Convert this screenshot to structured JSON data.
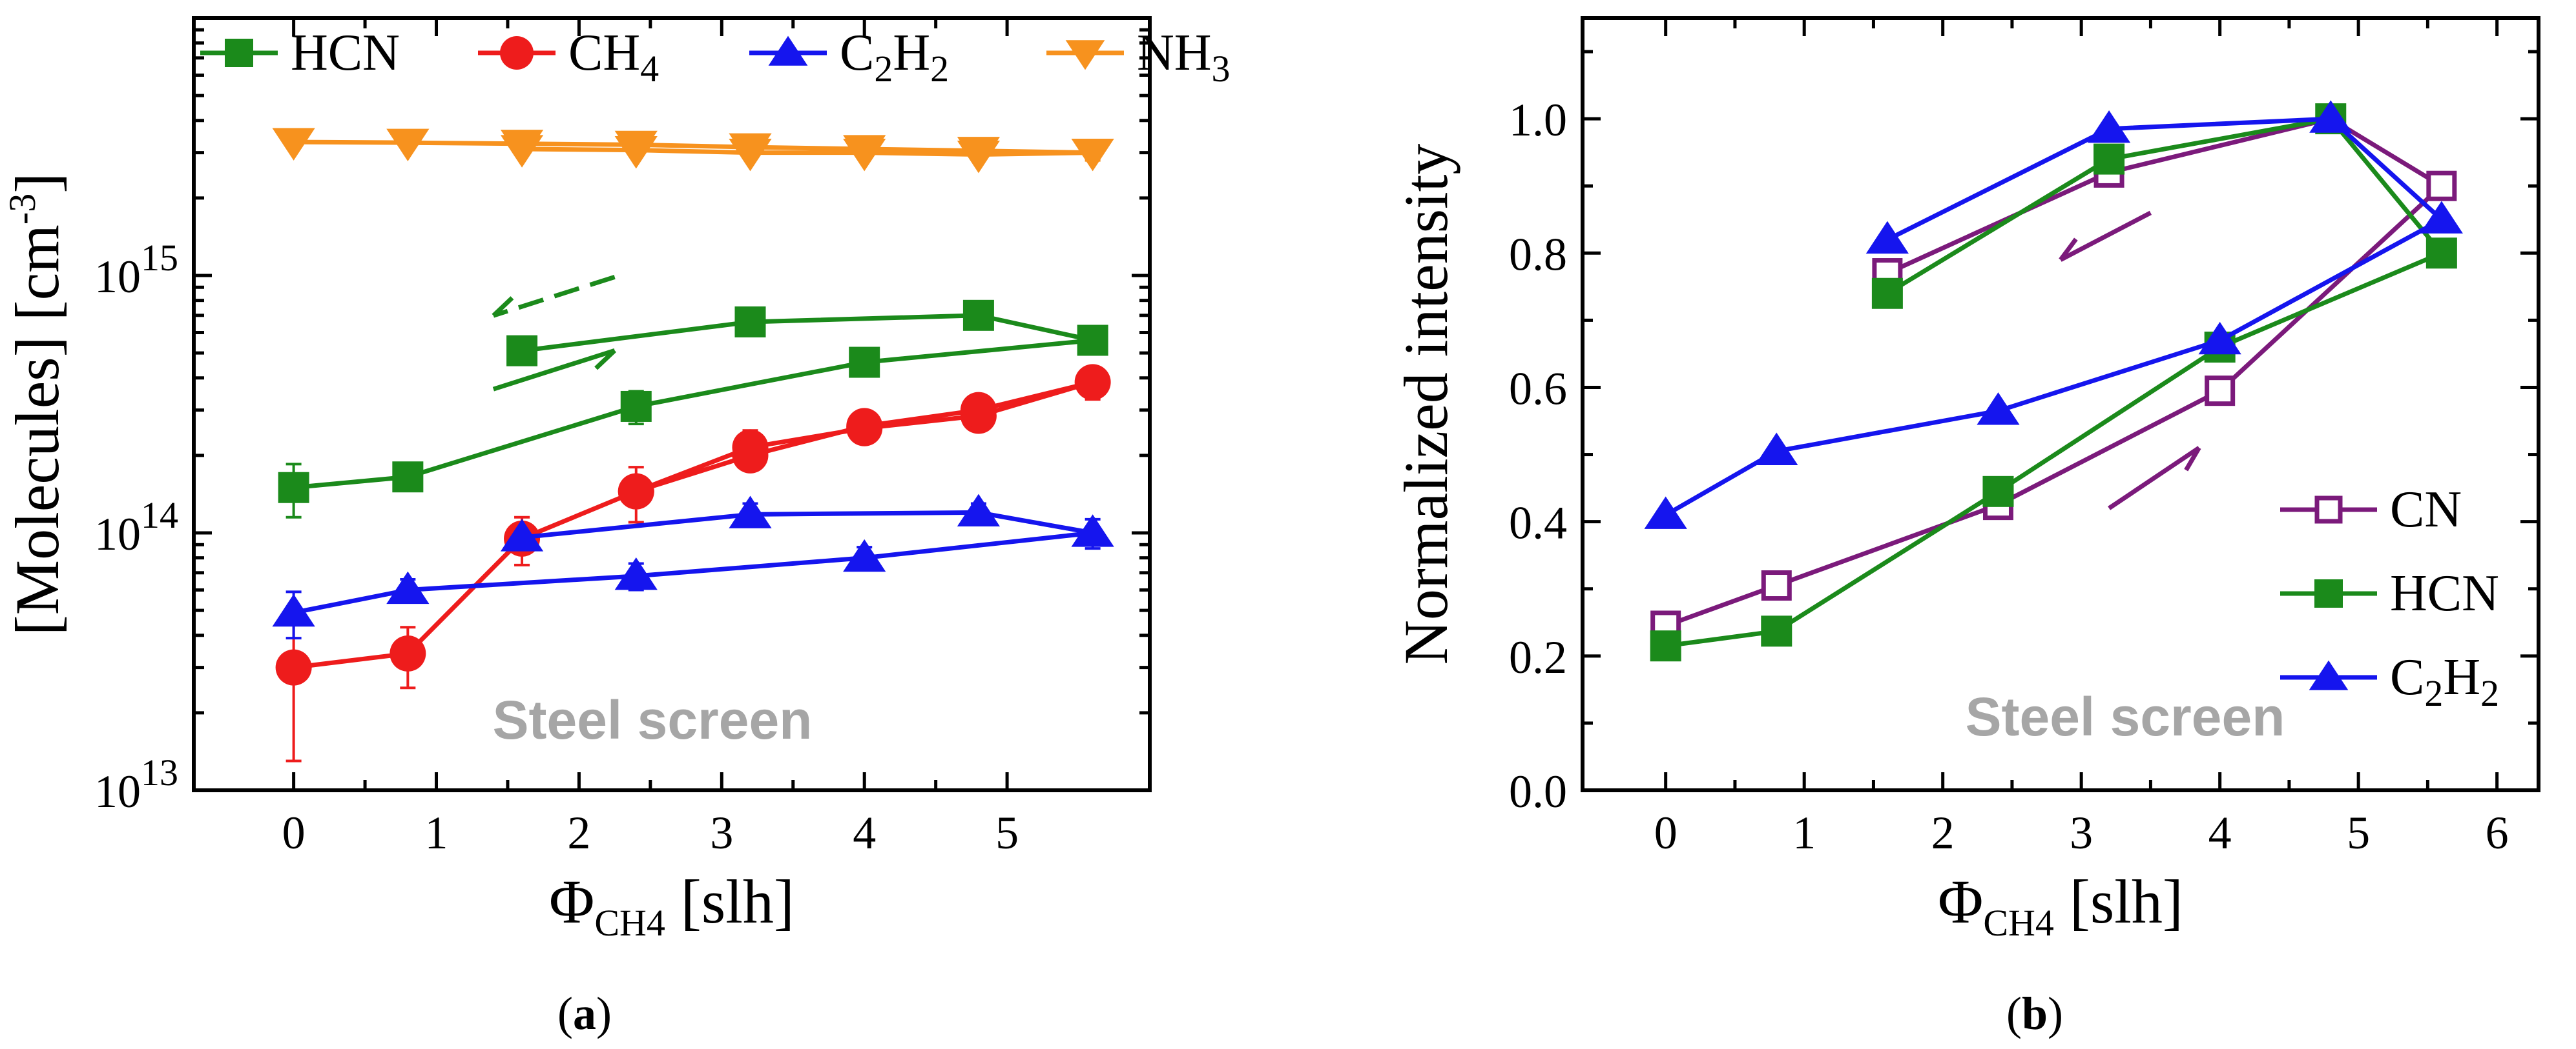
{
  "chart_data": [
    {
      "panel_label": "a",
      "type": "line",
      "scale_y": "log",
      "xlabel": {
        "main": "Φ",
        "sub": "CH4",
        "rest": " [slh]"
      },
      "ylabel": {
        "main": "[Molecules] [cm",
        "sup": "-3",
        "rest": "]"
      },
      "xlim": [
        -0.7,
        6.0
      ],
      "ylim": [
        10000000000000.0,
        1e+16
      ],
      "xticks": [
        0,
        1,
        2,
        3,
        4,
        5
      ],
      "xtick_labels": [
        "0",
        "1",
        "2",
        "3",
        "4",
        "5"
      ],
      "yticks": [
        10000000000000.0,
        100000000000000.0,
        1000000000000000.0
      ],
      "ytick_labels": [
        {
          "base": "10",
          "exp": "13"
        },
        {
          "base": "10",
          "exp": "14"
        },
        {
          "base": "10",
          "exp": "15"
        }
      ],
      "annotation": "Steel screen",
      "legend_position": "top",
      "series": [
        {
          "name": {
            "main": "HCN"
          },
          "color": "#1b8a1b",
          "marker": "square",
          "x": [
            0,
            0.8,
            2.4,
            4.0,
            5.6,
            4.8,
            3.2,
            1.6
          ],
          "y": [
            150000000000000.0,
            165000000000000.0,
            310000000000000.0,
            460000000000000.0,
            560000000000000.0,
            700000000000000.0,
            660000000000000.0,
            510000000000000.0
          ],
          "err": [
            35000000000000.0,
            15000000000000.0,
            45000000000000.0,
            20000000000000.0,
            50000000000000.0,
            60000000000000.0,
            50000000000000.0,
            45000000000000.0
          ]
        },
        {
          "name": {
            "main": "CH",
            "sub": "4"
          },
          "color": "#ee1c1c",
          "marker": "circle",
          "x": [
            0,
            0.8,
            1.6,
            2.4,
            3.2,
            4.0,
            4.8,
            5.6,
            4.8,
            4.0,
            3.2,
            2.4
          ],
          "y": [
            30000000000000.0,
            34000000000000.0,
            95000000000000.0,
            145000000000000.0,
            215000000000000.0,
            255000000000000.0,
            285000000000000.0,
            385000000000000.0,
            300000000000000.0,
            260000000000000.0,
            200000000000000.0,
            145000000000000.0
          ],
          "err": [
            17000000000000.0,
            9000000000000.0,
            20000000000000.0,
            35000000000000.0,
            35000000000000.0,
            20000000000000.0,
            20000000000000.0,
            55000000000000.0,
            0,
            0,
            0,
            0
          ]
        },
        {
          "name": {
            "main": "C",
            "sub": "2",
            "mid": "H",
            "sub2": "2"
          },
          "color": "#1515ee",
          "marker": "triangle-up",
          "x": [
            0,
            0.8,
            2.4,
            4.0,
            5.6,
            4.8,
            3.2,
            1.6
          ],
          "y": [
            49000000000000.0,
            60000000000000.0,
            68000000000000.0,
            80000000000000.0,
            100000000000000.0,
            120000000000000.0,
            118000000000000.0,
            96000000000000.0
          ],
          "err": [
            10000000000000.0,
            6000000000000.0,
            8000000000000.0,
            8000000000000.0,
            13000000000000.0,
            10000000000000.0,
            12000000000000.0,
            0
          ]
        },
        {
          "name": {
            "main": "NH",
            "sub": "3"
          },
          "color": "#f7921e",
          "marker": "triangle-down",
          "x": [
            0,
            0.8,
            1.6,
            2.4,
            3.2,
            4.0,
            4.8,
            5.6,
            4.8,
            4.0,
            3.2,
            2.4,
            1.6
          ],
          "y": [
            3300000000000000.0,
            3280000000000000.0,
            3250000000000000.0,
            3220000000000000.0,
            3150000000000000.0,
            3100000000000000.0,
            3050000000000000.0,
            3000000000000000.0,
            2950000000000000.0,
            3000000000000000.0,
            3000000000000000.0,
            3070000000000000.0,
            3100000000000000.0
          ],
          "err": [
            0,
            0,
            0,
            0,
            0,
            0,
            0,
            200000000000000.0,
            0,
            0,
            0,
            0,
            0
          ]
        }
      ]
    },
    {
      "panel_label": "b",
      "type": "line",
      "xlabel": {
        "main": "Φ",
        "sub": "CH4",
        "rest": " [slh]"
      },
      "ylabel": {
        "main": "Normalized intensity"
      },
      "xlim": [
        -0.6,
        6.3
      ],
      "ylim": [
        0.0,
        1.15
      ],
      "xticks": [
        0,
        1,
        2,
        3,
        4,
        5,
        6
      ],
      "xtick_labels": [
        "0",
        "1",
        "2",
        "3",
        "4",
        "5",
        "6"
      ],
      "yticks": [
        0.0,
        0.2,
        0.4,
        0.6,
        0.8,
        1.0
      ],
      "ytick_labels": [
        "0.0",
        "0.2",
        "0.4",
        "0.6",
        "0.8",
        "1.0"
      ],
      "annotation": "Steel screen",
      "legend_position": "bottom-right",
      "series": [
        {
          "name": {
            "main": "CN"
          },
          "color": "#7b1a7b",
          "marker": "square-open",
          "x": [
            0,
            0.8,
            2.4,
            4.0,
            5.6,
            4.8,
            3.2,
            1.6
          ],
          "y": [
            0.245,
            0.305,
            0.425,
            0.595,
            0.9,
            1.0,
            0.92,
            0.77
          ]
        },
        {
          "name": {
            "main": "HCN"
          },
          "color": "#1b8a1b",
          "marker": "square",
          "x": [
            0,
            0.8,
            2.4,
            4.0,
            5.6,
            4.8,
            3.2,
            1.6
          ],
          "y": [
            0.215,
            0.237,
            0.445,
            0.66,
            0.8,
            1.0,
            0.94,
            0.74
          ]
        },
        {
          "name": {
            "main": "C",
            "sub": "2",
            "mid": "H",
            "sub2": "2"
          },
          "color": "#1515ee",
          "marker": "triangle-up",
          "x": [
            0,
            0.8,
            2.4,
            4.0,
            5.6,
            4.8,
            3.2,
            1.6
          ],
          "y": [
            0.41,
            0.505,
            0.565,
            0.67,
            0.85,
            1.0,
            0.985,
            0.82
          ]
        }
      ]
    }
  ]
}
